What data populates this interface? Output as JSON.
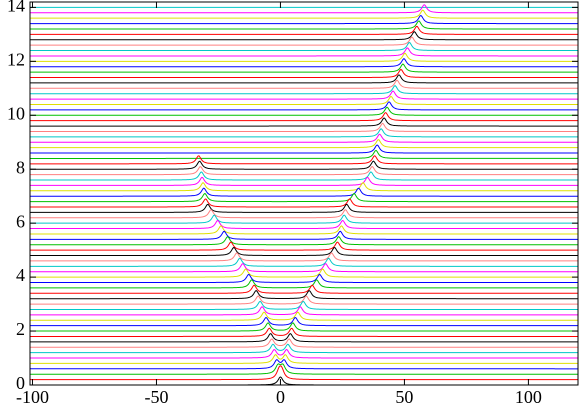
{
  "chart_data": {
    "type": "waterfall",
    "xlim": [
      -101,
      120
    ],
    "ylim": [
      0,
      14.2
    ],
    "xticks": [
      -100,
      -50,
      0,
      50,
      100
    ],
    "yticks": [
      0,
      2,
      4,
      6,
      8,
      10,
      12,
      14
    ],
    "peak_height": 0.3,
    "peak_width": 1.2,
    "colors": [
      "#000000",
      "#ff0000",
      "#00c000",
      "#0000ff",
      "#e0e000",
      "#ff00ff",
      "#00c8c8",
      "#ff8080"
    ],
    "traces": [
      {
        "y": 0,
        "peaks": [
          0
        ]
      },
      {
        "y": 0.2,
        "peaks": [
          -0.5,
          0.5
        ]
      },
      {
        "y": 0.4,
        "peaks": [
          -1,
          1
        ]
      },
      {
        "y": 0.6,
        "peaks": [
          -1.5,
          1.5
        ]
      },
      {
        "y": 0.8,
        "peaks": [
          -2,
          2
        ]
      },
      {
        "y": 1,
        "peaks": [
          -2.5,
          2.5
        ]
      },
      {
        "y": 1.2,
        "peaks": [
          -3,
          3
        ]
      },
      {
        "y": 1.4,
        "peaks": [
          -3.5,
          3.5
        ]
      },
      {
        "y": 1.6,
        "peaks": [
          -4,
          4
        ]
      },
      {
        "y": 1.8,
        "peaks": [
          -4.5,
          4.5
        ]
      },
      {
        "y": 2,
        "peaks": [
          -5,
          5
        ]
      },
      {
        "y": 2.2,
        "peaks": [
          -5.8,
          6
        ]
      },
      {
        "y": 2.4,
        "peaks": [
          -6.6,
          7
        ]
      },
      {
        "y": 2.6,
        "peaks": [
          -7.4,
          8
        ]
      },
      {
        "y": 2.8,
        "peaks": [
          -8.2,
          9.2
        ]
      },
      {
        "y": 3,
        "peaks": [
          -9,
          10.4
        ]
      },
      {
        "y": 3.2,
        "peaks": [
          -9.8,
          11.6
        ]
      },
      {
        "y": 3.4,
        "peaks": [
          -10.6,
          12.8
        ]
      },
      {
        "y": 3.6,
        "peaks": [
          -11.6,
          14.6
        ]
      },
      {
        "y": 3.8,
        "peaks": [
          -12.8,
          15.8
        ]
      },
      {
        "y": 4,
        "peaks": [
          -14,
          17
        ]
      },
      {
        "y": 4.2,
        "peaks": [
          -15.2,
          18.2
        ]
      },
      {
        "y": 4.4,
        "peaks": [
          -16.4,
          19.4
        ]
      },
      {
        "y": 4.6,
        "peaks": [
          -17.6,
          20.6
        ]
      },
      {
        "y": 4.8,
        "peaks": [
          -18.8,
          21.8
        ]
      },
      {
        "y": 5,
        "peaks": [
          -20,
          23
        ]
      },
      {
        "y": 5.2,
        "peaks": [
          -21.3,
          23.5
        ]
      },
      {
        "y": 5.4,
        "peaks": [
          -22.7,
          24.1
        ]
      },
      {
        "y": 5.6,
        "peaks": [
          -24,
          24.6
        ]
      },
      {
        "y": 5.8,
        "peaks": [
          -25.3,
          25.1
        ]
      },
      {
        "y": 6,
        "peaks": [
          -26.7,
          25.7
        ]
      },
      {
        "y": 6.2,
        "peaks": [
          -28,
          26.2
        ]
      },
      {
        "y": 6.4,
        "peaks": [
          -29.3,
          26.7
        ]
      },
      {
        "y": 6.6,
        "peaks": [
          -30.2,
          27.9
        ]
      },
      {
        "y": 6.8,
        "peaks": [
          -30.5,
          29.7
        ]
      },
      {
        "y": 7,
        "peaks": [
          -30.9,
          31.5
        ]
      },
      {
        "y": 7.2,
        "peaks": [
          -31.2,
          33.3
        ]
      },
      {
        "y": 7.4,
        "peaks": [
          -31.6,
          35.1
        ]
      },
      {
        "y": 7.6,
        "peaks": [
          -31.9,
          36.5
        ]
      },
      {
        "y": 7.8,
        "peaks": [
          -32.3,
          37
        ]
      },
      {
        "y": 8,
        "peaks": [
          -32.6,
          37.5
        ]
      },
      {
        "y": 8.2,
        "peaks": [
          -33,
          38
        ]
      },
      {
        "y": 8.4,
        "peaks": [
          38.5
        ]
      },
      {
        "y": 8.6,
        "peaks": [
          39
        ]
      },
      {
        "y": 8.8,
        "peaks": [
          39.5
        ]
      },
      {
        "y": 9,
        "peaks": [
          40
        ]
      },
      {
        "y": 9.2,
        "peaks": [
          40.6
        ]
      },
      {
        "y": 9.4,
        "peaks": [
          41.2
        ]
      },
      {
        "y": 9.6,
        "peaks": [
          41.8
        ]
      },
      {
        "y": 9.8,
        "peaks": [
          42.4
        ]
      },
      {
        "y": 10,
        "peaks": [
          43
        ]
      },
      {
        "y": 10.2,
        "peaks": [
          43.8
        ]
      },
      {
        "y": 10.4,
        "peaks": [
          44.6
        ]
      },
      {
        "y": 10.6,
        "peaks": [
          45.4
        ]
      },
      {
        "y": 10.8,
        "peaks": [
          46.2
        ]
      },
      {
        "y": 11,
        "peaks": [
          47
        ]
      },
      {
        "y": 11.2,
        "peaks": [
          47.8
        ]
      },
      {
        "y": 11.4,
        "peaks": [
          48.6
        ]
      },
      {
        "y": 11.6,
        "peaks": [
          49.4
        ]
      },
      {
        "y": 11.8,
        "peaks": [
          49.8
        ]
      },
      {
        "y": 12,
        "peaks": [
          50.2
        ]
      },
      {
        "y": 12.2,
        "peaks": [
          51.2
        ]
      },
      {
        "y": 12.4,
        "peaks": [
          52
        ]
      },
      {
        "y": 12.6,
        "peaks": [
          53
        ]
      },
      {
        "y": 12.8,
        "peaks": [
          54
        ]
      },
      {
        "y": 13,
        "peaks": [
          55
        ]
      },
      {
        "y": 13.2,
        "peaks": [
          55.8
        ]
      },
      {
        "y": 13.4,
        "peaks": [
          56.6
        ]
      },
      {
        "y": 13.6,
        "peaks": [
          57.4
        ]
      },
      {
        "y": 13.8,
        "peaks": [
          58
        ]
      },
      {
        "y": 14,
        "peaks": []
      }
    ]
  }
}
